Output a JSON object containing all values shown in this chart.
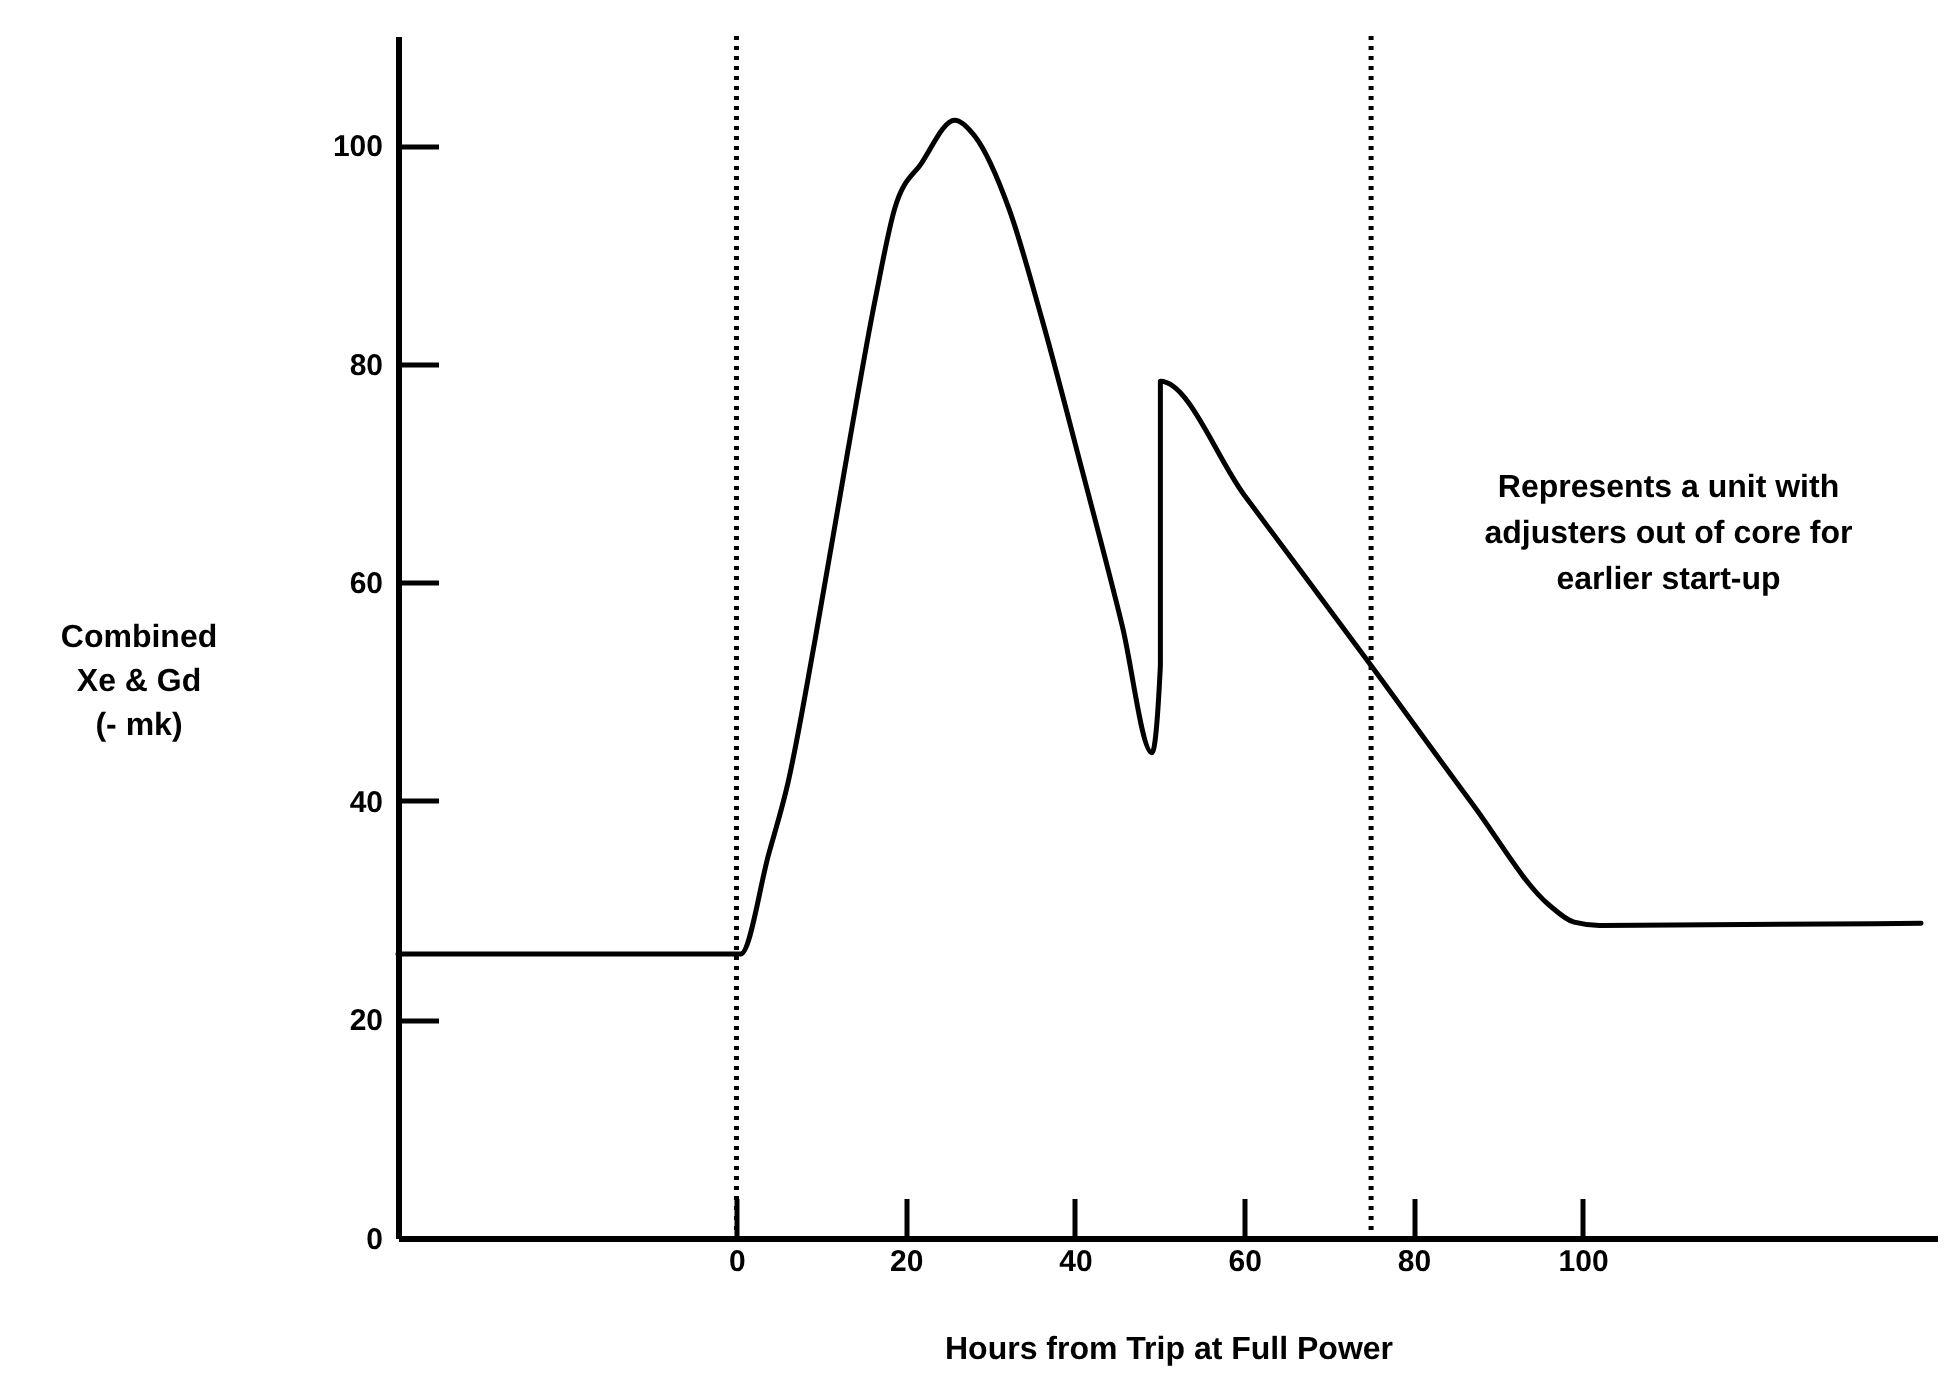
{
  "chart_data": {
    "type": "line",
    "xlabel": "Hours from Trip at Full Power",
    "ylabel": "Combined Xe & Gd (- mk)",
    "xlim": [
      -40,
      142
    ],
    "xticks": [
      0,
      20,
      40,
      60,
      80,
      100
    ],
    "ylim": [
      0,
      110
    ],
    "yticks": [
      0,
      20,
      40,
      60,
      80,
      100
    ],
    "x": [
      -40,
      0.5,
      3.8,
      6.1,
      9.3,
      13.2,
      16.4,
      18.7,
      21.9,
      25.8,
      28.2,
      32.2,
      36.1,
      40.8,
      45.6,
      49.1,
      50.1,
      50.1,
      60,
      75,
      87,
      96,
      99,
      102,
      140
    ],
    "series": [
      {
        "color": "#000000",
        "values": [
          26,
          26,
          35.1,
          41.7,
          54.8,
          72.2,
          85.9,
          94.2,
          98.4,
          102.3,
          100.8,
          94.2,
          84.1,
          70.4,
          56,
          44.4,
          52.4,
          78.4,
          68,
          52.4,
          39.7,
          30.5,
          28.9,
          28.6,
          28.8
        ]
      }
    ],
    "ref_lines": [
      {
        "axis": "x",
        "value": 0,
        "line_style": "dotted"
      },
      {
        "axis": "x",
        "value": 75,
        "line_style": "dotted"
      }
    ],
    "annotations": [
      "Represents a unit with adjusters out of core for earlier start-up"
    ]
  }
}
